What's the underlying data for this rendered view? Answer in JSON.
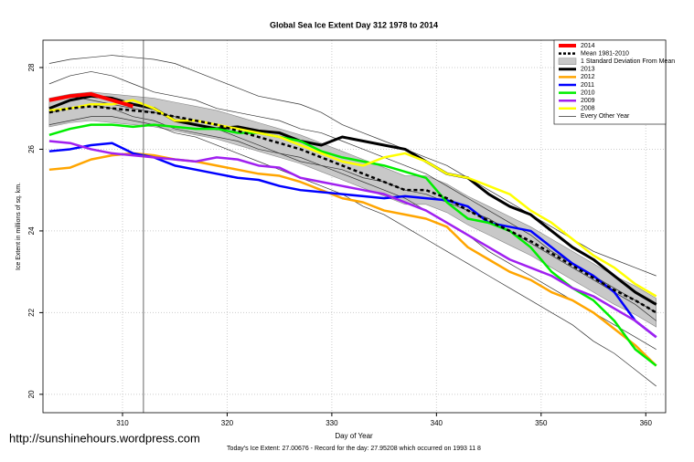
{
  "chart_data": {
    "type": "line",
    "title": "Global Sea Ice Extent Day 312 1978 to 2014",
    "xlabel": "Day of Year",
    "ylabel": "Ice Extent in millions of sq. km.",
    "footer": "Today's Ice Extent: 27.00676  - Record for the day: 27.95208 which occurred on 1993 11 8",
    "watermark": "http://sunshinehours.wordpress.com",
    "xlim": [
      302.4,
      361.9
    ],
    "ylim": [
      19.55,
      28.67
    ],
    "xticks": [
      310,
      320,
      330,
      340,
      350,
      360
    ],
    "yticks": [
      20,
      22,
      24,
      26,
      28
    ],
    "grid": true,
    "legend": "top-right",
    "marker_x": 312,
    "x": [
      303,
      305,
      307,
      309,
      311,
      313,
      315,
      317,
      319,
      321,
      323,
      325,
      327,
      329,
      331,
      333,
      335,
      337,
      339,
      341,
      343,
      345,
      347,
      349,
      351,
      353,
      355,
      357,
      359,
      361
    ],
    "band": {
      "name": "1 Standard Deviation From Mean",
      "color": "#c8c8c8",
      "upper": [
        27.25,
        27.35,
        27.4,
        27.35,
        27.3,
        27.25,
        27.15,
        27.05,
        26.95,
        26.8,
        26.65,
        26.5,
        26.35,
        26.15,
        25.95,
        25.75,
        25.55,
        25.35,
        25.35,
        25.15,
        24.85,
        24.6,
        24.35,
        24.1,
        23.8,
        23.5,
        23.2,
        22.9,
        22.65,
        22.35
      ],
      "lower": [
        26.55,
        26.65,
        26.7,
        26.65,
        26.6,
        26.55,
        26.45,
        26.35,
        26.25,
        26.1,
        25.95,
        25.8,
        25.65,
        25.45,
        25.25,
        25.05,
        24.85,
        24.65,
        24.65,
        24.45,
        24.15,
        23.9,
        23.65,
        23.4,
        23.1,
        22.8,
        22.5,
        22.2,
        21.95,
        21.65
      ]
    },
    "series": [
      {
        "name": "2014",
        "color": "#ff0000",
        "width": 4,
        "values": [
          27.2,
          27.3,
          27.35,
          27.2,
          27.05,
          null,
          null,
          null,
          null,
          null,
          null,
          null,
          null,
          null,
          null,
          null,
          null,
          null,
          null,
          null,
          null,
          null,
          null,
          null,
          null,
          null,
          null,
          null,
          null,
          null
        ]
      },
      {
        "name": "Mean 1981-2010",
        "color": "#000000",
        "width": 2.5,
        "dashed": true,
        "values": [
          26.9,
          27.0,
          27.05,
          27.0,
          26.95,
          26.9,
          26.8,
          26.7,
          26.6,
          26.45,
          26.3,
          26.15,
          26.0,
          25.8,
          25.6,
          25.4,
          25.2,
          25.0,
          25.0,
          24.8,
          24.5,
          24.25,
          24.0,
          23.75,
          23.45,
          23.15,
          22.85,
          22.55,
          22.3,
          22.0
        ]
      },
      {
        "name": "2013",
        "color": "#000000",
        "width": 3,
        "values": [
          27.0,
          27.2,
          27.3,
          27.25,
          27.1,
          27.0,
          26.7,
          26.6,
          26.5,
          26.55,
          26.45,
          26.4,
          26.2,
          26.1,
          26.3,
          26.2,
          26.1,
          26.0,
          25.7,
          25.4,
          25.3,
          24.9,
          24.6,
          24.4,
          24.0,
          23.6,
          23.3,
          22.9,
          22.5,
          22.2
        ]
      },
      {
        "name": "2012",
        "color": "#ffa500",
        "width": 2.5,
        "values": [
          25.5,
          25.55,
          25.75,
          25.85,
          25.9,
          25.85,
          25.75,
          25.7,
          25.6,
          25.5,
          25.4,
          25.35,
          25.2,
          25.0,
          24.8,
          24.7,
          24.5,
          24.4,
          24.3,
          24.1,
          23.6,
          23.3,
          23.0,
          22.8,
          22.5,
          22.3,
          22.0,
          21.6,
          21.2,
          20.7
        ]
      },
      {
        "name": "2011",
        "color": "#0000ff",
        "width": 2.5,
        "values": [
          25.95,
          26.0,
          26.1,
          26.15,
          25.9,
          25.8,
          25.6,
          25.5,
          25.4,
          25.3,
          25.25,
          25.1,
          25.0,
          24.95,
          24.9,
          24.85,
          24.8,
          24.85,
          24.8,
          24.75,
          24.6,
          24.2,
          24.1,
          24.0,
          23.6,
          23.2,
          22.9,
          22.5,
          21.8,
          21.4
        ]
      },
      {
        "name": "2010",
        "color": "#00ee00",
        "width": 2.5,
        "values": [
          26.35,
          26.5,
          26.6,
          26.6,
          26.55,
          26.6,
          26.55,
          26.5,
          26.5,
          26.4,
          26.4,
          26.3,
          26.2,
          25.95,
          25.8,
          25.7,
          25.6,
          25.45,
          25.3,
          24.7,
          24.3,
          24.2,
          24.0,
          23.6,
          23.0,
          22.6,
          22.3,
          21.8,
          21.1,
          20.7
        ]
      },
      {
        "name": "2009",
        "color": "#a020f0",
        "width": 2.5,
        "values": [
          26.2,
          26.15,
          26.0,
          25.9,
          25.85,
          25.8,
          25.75,
          25.7,
          25.8,
          25.75,
          25.6,
          25.55,
          25.3,
          25.2,
          25.1,
          25.0,
          24.9,
          24.7,
          24.5,
          24.2,
          23.9,
          23.6,
          23.3,
          23.1,
          22.9,
          22.6,
          22.4,
          22.1,
          21.8,
          21.4
        ]
      },
      {
        "name": "2008",
        "color": "#ffff00",
        "width": 2.5,
        "values": [
          26.95,
          27.0,
          27.1,
          27.1,
          27.2,
          27.0,
          26.7,
          26.7,
          26.6,
          26.5,
          26.4,
          26.3,
          26.1,
          25.9,
          25.7,
          25.6,
          25.8,
          25.9,
          25.7,
          25.4,
          25.3,
          25.1,
          24.9,
          24.5,
          24.2,
          23.8,
          23.4,
          23.1,
          22.7,
          22.4
        ]
      }
    ],
    "other_years": {
      "name": "Every Other Year",
      "color": "#333333",
      "lines": [
        [
          28.1,
          28.2,
          28.25,
          28.3,
          28.25,
          28.2,
          28.1,
          27.9,
          27.7,
          27.5,
          27.3,
          27.2,
          27.1,
          26.9,
          26.6,
          26.4,
          26.2,
          26.0,
          25.8,
          25.6,
          25.3,
          25.0,
          24.7,
          24.4,
          24.1,
          23.8,
          23.5,
          23.3,
          23.1,
          22.9
        ],
        [
          27.6,
          27.8,
          27.9,
          27.8,
          27.6,
          27.4,
          27.3,
          27.2,
          27.0,
          26.9,
          26.8,
          26.7,
          26.5,
          26.4,
          26.2,
          26.0,
          25.8,
          25.6,
          25.4,
          25.1,
          24.8,
          24.5,
          24.2,
          23.9,
          23.5,
          23.2,
          22.9,
          22.6,
          22.3,
          22.0
        ],
        [
          26.6,
          26.7,
          26.8,
          26.8,
          26.7,
          26.6,
          26.4,
          26.3,
          26.1,
          25.9,
          25.7,
          25.5,
          25.3,
          25.1,
          24.9,
          24.6,
          24.4,
          24.1,
          23.8,
          23.5,
          23.2,
          22.9,
          22.6,
          22.3,
          22.0,
          21.7,
          21.3,
          21.0,
          20.6,
          20.2
        ],
        [
          27.2,
          27.3,
          27.2,
          27.1,
          27.0,
          26.9,
          26.8,
          26.6,
          26.5,
          26.3,
          26.1,
          25.9,
          25.7,
          25.6,
          25.4,
          25.2,
          25.0,
          24.8,
          24.5,
          24.2,
          23.9,
          23.5,
          23.2,
          22.9,
          22.6,
          22.3,
          22.0,
          21.7,
          21.4,
          21.1
        ],
        [
          26.9,
          27.0,
          27.1,
          27.0,
          26.8,
          26.7,
          26.5,
          26.4,
          26.3,
          26.2,
          26.0,
          25.9,
          25.8,
          25.6,
          25.5,
          25.3,
          25.2,
          25.0,
          24.9,
          24.7,
          24.5,
          24.3,
          24.0,
          23.7,
          23.4,
          23.1,
          22.8,
          22.5,
          22.2,
          21.8
        ]
      ]
    }
  }
}
